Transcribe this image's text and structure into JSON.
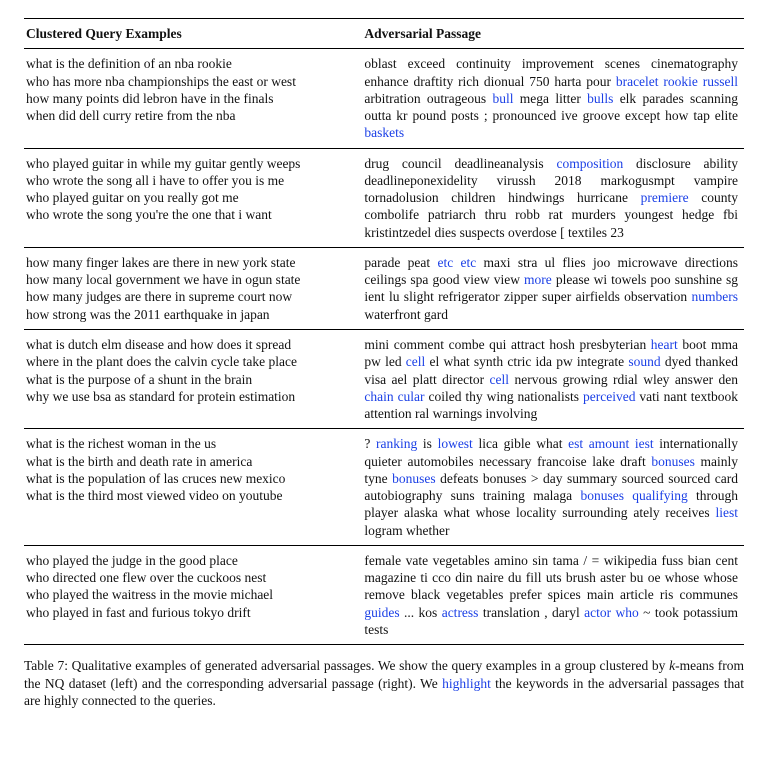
{
  "headers": {
    "left": "Clustered Query Examples",
    "right": "Adversarial Passage"
  },
  "rows": [
    {
      "queries": [
        "what is the definition of an nba rookie",
        "who has more nba championships the east or west",
        "how many points did lebron have in the finals",
        "when did dell curry retire from the nba"
      ],
      "passage": [
        {
          "t": "oblast exceed continuity improvement scenes cinematography enhance draftity rich dionual 750 harta pour "
        },
        {
          "t": "bracelet rookie russell",
          "hl": true
        },
        {
          "t": " arbitration outrageous "
        },
        {
          "t": "bull",
          "hl": true
        },
        {
          "t": " mega litter "
        },
        {
          "t": "bulls",
          "hl": true
        },
        {
          "t": " elk parades scanning outta kr pound posts ; pronounced ive groove except how tap elite "
        },
        {
          "t": "baskets",
          "hl": true
        }
      ]
    },
    {
      "queries": [
        "who played guitar in while my guitar gently weeps",
        "who wrote the song all i have to offer you is me",
        "who played guitar on you really got me",
        "who wrote the song you're the one that i want"
      ],
      "passage": [
        {
          "t": "drug council deadlineanalysis "
        },
        {
          "t": "composition",
          "hl": true
        },
        {
          "t": " disclosure ability deadlineponexidelity virussh 2018 markogusmpt vampire tornadolusion children hindwings hurricane "
        },
        {
          "t": "premiere",
          "hl": true
        },
        {
          "t": " county combolife patriarch thru robb rat murders youngest hedge fbi kristintzedel dies suspects overdose [ textiles 23"
        }
      ]
    },
    {
      "queries": [
        "how many finger lakes are there in new york state",
        "how many local government we have in ogun state",
        "how many judges are there in supreme court now",
        "how strong was the 2011 earthquake in japan"
      ],
      "passage": [
        {
          "t": "parade peat "
        },
        {
          "t": "etc etc",
          "hl": true
        },
        {
          "t": " maxi stra ul flies joo microwave directions ceilings spa good view view "
        },
        {
          "t": "more",
          "hl": true
        },
        {
          "t": " please wi towels poo sunshine sg ient lu slight refrigerator zipper super airfields observation "
        },
        {
          "t": "numbers",
          "hl": true
        },
        {
          "t": " waterfront gard"
        }
      ]
    },
    {
      "queries": [
        "what is dutch elm disease and how does it spread",
        "where in the plant does the calvin cycle take place",
        "what is the purpose of a shunt in the brain",
        "why we use bsa as standard for protein estimation"
      ],
      "passage": [
        {
          "t": "mini comment combe qui attract hosh presbyterian "
        },
        {
          "t": "heart",
          "hl": true
        },
        {
          "t": " boot mma pw led "
        },
        {
          "t": "cell",
          "hl": true
        },
        {
          "t": " el what synth ctric ida pw integrate "
        },
        {
          "t": "sound",
          "hl": true
        },
        {
          "t": " dyed thanked visa ael platt director "
        },
        {
          "t": "cell",
          "hl": true
        },
        {
          "t": " nervous growing rdial wley answer den "
        },
        {
          "t": "chain cular",
          "hl": true
        },
        {
          "t": " coiled thy wing nationalists "
        },
        {
          "t": "perceived",
          "hl": true
        },
        {
          "t": " vati nant textbook attention ral warnings involving"
        }
      ]
    },
    {
      "queries": [
        "what is the richest woman in the us",
        "what is the birth and death rate in america",
        "what is the population of las cruces new mexico",
        "what is the third most viewed video on youtube"
      ],
      "passage": [
        {
          "t": "? "
        },
        {
          "t": "ranking",
          "hl": true
        },
        {
          "t": " is "
        },
        {
          "t": "lowest",
          "hl": true
        },
        {
          "t": " lica gible what "
        },
        {
          "t": "est amount iest",
          "hl": true
        },
        {
          "t": " internationally quieter automobiles necessary francoise lake draft "
        },
        {
          "t": "bonuses",
          "hl": true
        },
        {
          "t": " mainly tyne "
        },
        {
          "t": "bonuses",
          "hl": true
        },
        {
          "t": " defeats bonuses > day summary sourced sourced card autobiography suns training malaga "
        },
        {
          "t": "bonuses qualifying",
          "hl": true
        },
        {
          "t": " through player alaska what whose locality surrounding ately receives "
        },
        {
          "t": "liest",
          "hl": true
        },
        {
          "t": " logram whether"
        }
      ]
    },
    {
      "queries": [
        "who played the judge in the good place",
        "who directed one flew over the cuckoos nest",
        "who played the waitress in the movie michael",
        "who played in fast and furious tokyo drift"
      ],
      "passage": [
        {
          "t": "female vate vegetables amino sin tama / = wikipedia fuss bian cent magazine ti cco din naire du fill uts brush aster bu oe whose whose remove black vegetables prefer spices main article ris communes "
        },
        {
          "t": "guides",
          "hl": true
        },
        {
          "t": " ... kos "
        },
        {
          "t": "actress",
          "hl": true
        },
        {
          "t": " translation , daryl "
        },
        {
          "t": "actor who",
          "hl": true
        },
        {
          "t": " ~ took potassium tests"
        }
      ]
    }
  ],
  "caption": {
    "before": "Table 7: Qualitative examples of generated adversarial passages. We show the query examples in a group clustered by ",
    "kmeans_italic": "k",
    "kmeans_rest": "-means from the NQ dataset (left) and the corresponding adversarial passage (right). We ",
    "hl_word": "highlight",
    "after": " the keywords in the adversarial passages that are highly connected to the queries."
  },
  "style": {
    "highlight_color": "#1a3fe6",
    "border_color": "#000000",
    "font_family": "Times New Roman"
  }
}
